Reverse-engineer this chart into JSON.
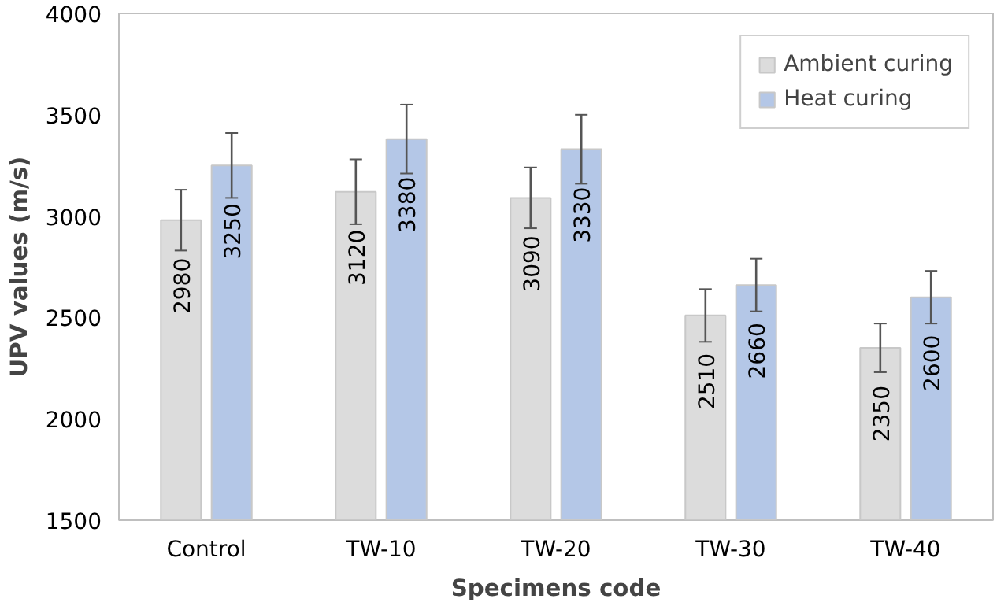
{
  "chart_data": {
    "type": "bar",
    "xlabel": "Specimens code",
    "ylabel": "UPV values (m/s)",
    "categories": [
      "Control",
      "TW-10",
      "TW-20",
      "TW-30",
      "TW-40"
    ],
    "series": [
      {
        "name": "Ambient curing",
        "color": "#dcdcdc",
        "values": [
          2980,
          3120,
          3090,
          2510,
          2350
        ],
        "errors": [
          150,
          160,
          150,
          130,
          120
        ]
      },
      {
        "name": "Heat curing",
        "color": "#b4c7e7",
        "values": [
          3250,
          3380,
          3330,
          2660,
          2600
        ],
        "errors": [
          160,
          170,
          170,
          130,
          130
        ]
      }
    ],
    "ylim": [
      1500,
      4000
    ],
    "yticks": [
      1500,
      2000,
      2500,
      3000,
      3500,
      4000
    ],
    "grid": false,
    "legend": "top right",
    "data_labels": true
  }
}
